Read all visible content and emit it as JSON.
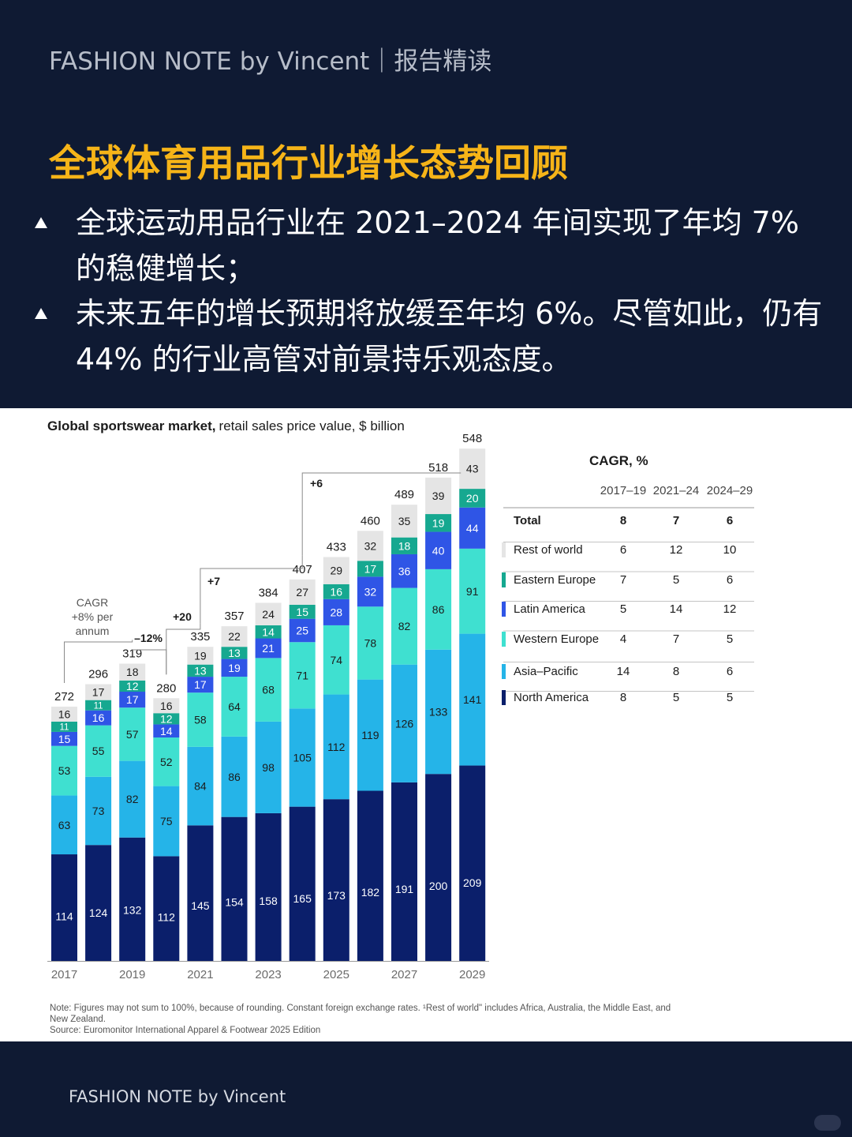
{
  "header": {
    "brand": "FASHION NOTE by Vincent｜报告精读",
    "headline": "全球体育用品行业增长态势回顾",
    "bullets": [
      "全球运动用品行业在 2021–2024 年间实现了年均 7% 的稳健增长；",
      "未来五年的增长预期将放缓至年均 6%。尽管如此，仍有 44% 的行业高管对前景持乐观态度。"
    ]
  },
  "chart_data": {
    "type": "bar",
    "stacked": true,
    "title": "Global sportswear market,",
    "subtitle": "retail sales price value, $ billion",
    "categories": [
      "2017",
      "2018",
      "2019",
      "2020",
      "2021",
      "2022",
      "2023",
      "2024",
      "2025",
      "2026",
      "2027",
      "2028",
      "2029"
    ],
    "x_tick_labels": [
      "2017",
      "2019",
      "2021",
      "2023",
      "2025",
      "2027",
      "2029"
    ],
    "series": [
      {
        "name": "North America",
        "color": "#0b1f6b",
        "values": [
          114,
          124,
          132,
          112,
          145,
          154,
          158,
          165,
          173,
          182,
          191,
          200,
          209
        ]
      },
      {
        "name": "Asia–Pacific",
        "color": "#25b4e8",
        "values": [
          63,
          73,
          82,
          75,
          84,
          86,
          98,
          105,
          112,
          119,
          126,
          133,
          141
        ]
      },
      {
        "name": "Western Europe",
        "color": "#3fe0d0",
        "values": [
          53,
          55,
          57,
          52,
          58,
          64,
          68,
          71,
          74,
          78,
          82,
          86,
          91
        ]
      },
      {
        "name": "Latin America",
        "color": "#2f55e6",
        "values": [
          15,
          16,
          17,
          14,
          17,
          19,
          21,
          25,
          28,
          32,
          36,
          40,
          44
        ]
      },
      {
        "name": "Eastern Europe",
        "color": "#16a890",
        "values": [
          11,
          11,
          12,
          12,
          13,
          13,
          14,
          15,
          16,
          17,
          18,
          19,
          20
        ]
      },
      {
        "name": "Rest of world",
        "color": "#e5e5e5",
        "values": [
          16,
          17,
          18,
          16,
          19,
          22,
          24,
          27,
          29,
          32,
          35,
          39,
          43
        ]
      }
    ],
    "totals": [
      272,
      296,
      319,
      280,
      335,
      357,
      384,
      407,
      433,
      460,
      489,
      518,
      548
    ],
    "annotations": {
      "cagr_label_1": "CAGR",
      "cagr_label_2": "+8% per",
      "cagr_label_3": "annum",
      "drop": "–12%",
      "plus20": "+20",
      "plus7": "+7",
      "plus6": "+6"
    },
    "cagr_table": {
      "title": "CAGR, %",
      "columns": [
        "2017–19",
        "2021–24",
        "2024–29"
      ],
      "rows": [
        {
          "label": "Total",
          "values": [
            "8",
            "7",
            "6"
          ],
          "color": ""
        },
        {
          "label": "Rest of world",
          "values": [
            "6",
            "12",
            "10"
          ],
          "color": "#e5e5e5"
        },
        {
          "label": "Eastern Europe",
          "values": [
            "7",
            "5",
            "6"
          ],
          "color": "#16a890"
        },
        {
          "label": "Latin America",
          "values": [
            "5",
            "14",
            "12"
          ],
          "color": "#2f55e6"
        },
        {
          "label": "Western Europe",
          "values": [
            "4",
            "7",
            "5"
          ],
          "color": "#3fe0d0"
        },
        {
          "label": "Asia–Pacific",
          "values": [
            "14",
            "8",
            "6"
          ],
          "color": "#25b4e8"
        },
        {
          "label": "North America",
          "values": [
            "8",
            "5",
            "5"
          ],
          "color": "#0b1f6b"
        }
      ]
    },
    "note_1": "Note: Figures may not sum to 100%, because of rounding. Constant foreign exchange rates. ¹Rest of world\" includes Africa, Australia, the Middle East, and",
    "note_2": "New Zealand.",
    "source": "Source: Euromonitor International Apparel & Footwear 2025 Edition"
  },
  "footer": {
    "text": "FASHION NOTE by Vincent"
  }
}
